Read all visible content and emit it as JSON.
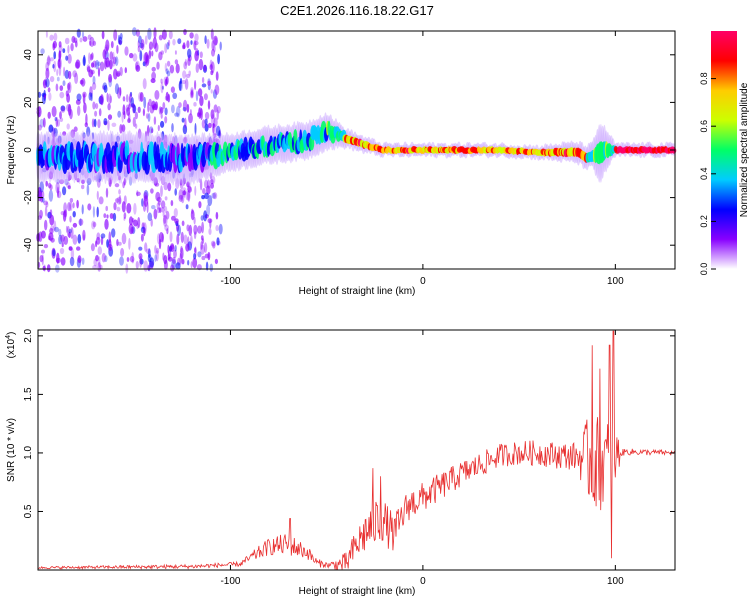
{
  "chart_data": [
    {
      "type": "heatmap",
      "title": "C2E1.2026.116.18.22.G17",
      "xlabel": "Height of straight line (km)",
      "ylabel": "Frequency (Hz)",
      "xlim": [
        -200,
        131
      ],
      "ylim": [
        -50,
        50
      ],
      "xticks": [
        -100,
        0,
        100
      ],
      "yticks": [
        -40,
        -20,
        0,
        20,
        40
      ],
      "colorbar": {
        "label": "Normalized spectral amplitude",
        "range": [
          0,
          1
        ],
        "ticks": [
          "0.0",
          "0.2",
          "0.4",
          "0.6",
          "0.8"
        ],
        "colors": [
          "#ffffff",
          "#8800ff",
          "#0000ff",
          "#00ccff",
          "#00ff66",
          "#ccff00",
          "#ffcc00",
          "#ff0000",
          "#ff0066"
        ]
      },
      "center_line": [
        [
          -200,
          -3
        ],
        [
          -150,
          -3
        ],
        [
          -120,
          -4
        ],
        [
          -100,
          -1
        ],
        [
          -80,
          2
        ],
        [
          -60,
          4
        ],
        [
          -50,
          8
        ],
        [
          -40,
          5
        ],
        [
          -30,
          2
        ],
        [
          -20,
          0
        ],
        [
          -10,
          0
        ],
        [
          0,
          0
        ],
        [
          20,
          0
        ],
        [
          40,
          0
        ],
        [
          60,
          -1
        ],
        [
          80,
          -1
        ],
        [
          85,
          -3
        ],
        [
          90,
          -2
        ],
        [
          95,
          0
        ],
        [
          100,
          0
        ],
        [
          131,
          0
        ]
      ],
      "center_width_hz": [
        [
          -200,
          8
        ],
        [
          -120,
          8
        ],
        [
          -100,
          6
        ],
        [
          -60,
          6
        ],
        [
          -50,
          6
        ],
        [
          -40,
          3
        ],
        [
          -20,
          2
        ],
        [
          0,
          2
        ],
        [
          60,
          2
        ],
        [
          88,
          4
        ],
        [
          92,
          10
        ],
        [
          100,
          2
        ],
        [
          131,
          2
        ]
      ]
    },
    {
      "type": "line",
      "xlabel": "Height of straight line (km)",
      "ylabel": "SNR (10 * v/v)",
      "multiplier": "(x10",
      "multiplier_exp": "4",
      "multiplier_close": ")",
      "xlim": [
        -200,
        131
      ],
      "ylim": [
        0,
        2.05
      ],
      "xticks": [
        -100,
        0,
        100
      ],
      "yticks": [
        0.5,
        1.0,
        1.5,
        2.0
      ],
      "ytick_labels": [
        "0.5",
        "1.0",
        "1.5",
        "2.0"
      ],
      "series": [
        {
          "name": "SNR",
          "color": "#e83030",
          "trend": [
            [
              -200,
              0.02
            ],
            [
              -120,
              0.03
            ],
            [
              -95,
              0.05
            ],
            [
              -90,
              0.1
            ],
            [
              -80,
              0.2
            ],
            [
              -70,
              0.22
            ],
            [
              -60,
              0.15
            ],
            [
              -55,
              0.06
            ],
            [
              -48,
              0.04
            ],
            [
              -40,
              0.05
            ],
            [
              -35,
              0.2
            ],
            [
              -30,
              0.32
            ],
            [
              -22,
              0.45
            ],
            [
              -15,
              0.3
            ],
            [
              -8,
              0.55
            ],
            [
              0,
              0.62
            ],
            [
              10,
              0.72
            ],
            [
              20,
              0.82
            ],
            [
              30,
              0.9
            ],
            [
              40,
              0.98
            ],
            [
              50,
              1.0
            ],
            [
              60,
              1.0
            ],
            [
              70,
              0.98
            ],
            [
              80,
              0.97
            ],
            [
              86,
              0.95
            ],
            [
              92,
              0.9
            ],
            [
              100,
              0.98
            ],
            [
              105,
              1.01
            ],
            [
              131,
              1.0
            ]
          ],
          "noise": [
            [
              -200,
              0.01
            ],
            [
              -95,
              0.02
            ],
            [
              -85,
              0.06
            ],
            [
              -70,
              0.1
            ],
            [
              -60,
              0.06
            ],
            [
              -50,
              0.02
            ],
            [
              -38,
              0.12
            ],
            [
              -25,
              0.22
            ],
            [
              -10,
              0.14
            ],
            [
              10,
              0.12
            ],
            [
              40,
              0.1
            ],
            [
              80,
              0.12
            ],
            [
              88,
              0.45
            ],
            [
              100,
              0.3
            ],
            [
              103,
              0.03
            ],
            [
              131,
              0.02
            ]
          ],
          "spikes": [
            [
              -69,
              0.44
            ],
            [
              -26,
              0.87
            ],
            [
              -22,
              0.8
            ],
            [
              88,
              1.92
            ],
            [
              92,
              1.72
            ],
            [
              97,
              1.92
            ],
            [
              99,
              2.04
            ],
            [
              98,
              0.1
            ]
          ]
        }
      ]
    }
  ]
}
